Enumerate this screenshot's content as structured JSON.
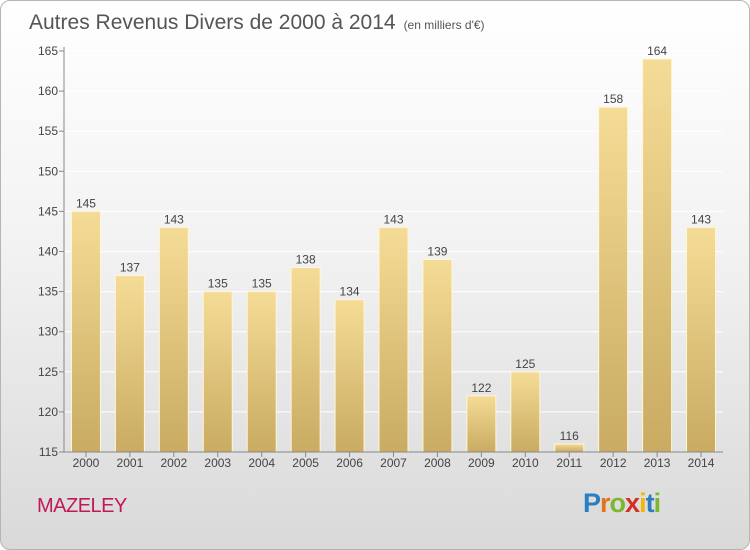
{
  "title": "Autres Revenus Divers de 2000 à 2014",
  "subtitle": "(en milliers d'€)",
  "commune": "MAZELEY",
  "logo": {
    "letters": [
      "P",
      "r",
      "o",
      "x",
      "i",
      "t",
      "i"
    ],
    "colors": [
      "#2b7fc0",
      "#e5731c",
      "#7cb82f",
      "#d62d20",
      "#f2b705",
      "#2b7fc0",
      "#7cb82f"
    ]
  },
  "colors": {
    "bar_top": "#f5dc96",
    "bar_bottom": "#c9ab62",
    "title": "#555555",
    "commune": "#c2185b"
  },
  "chart_data": {
    "type": "bar",
    "title": "Autres Revenus Divers de 2000 à 2014",
    "subtitle": "(en milliers d'€)",
    "categories": [
      "2000",
      "2001",
      "2002",
      "2003",
      "2004",
      "2005",
      "2006",
      "2007",
      "2008",
      "2009",
      "2010",
      "2011",
      "2012",
      "2013",
      "2014"
    ],
    "values": [
      145,
      137,
      143,
      135,
      135,
      138,
      134,
      143,
      139,
      122,
      125,
      116,
      158,
      164,
      143
    ],
    "ylim": [
      115,
      165
    ],
    "yticks": [
      115,
      120,
      125,
      130,
      135,
      140,
      145,
      150,
      155,
      160,
      165
    ],
    "grid": true,
    "data_labels": true
  }
}
